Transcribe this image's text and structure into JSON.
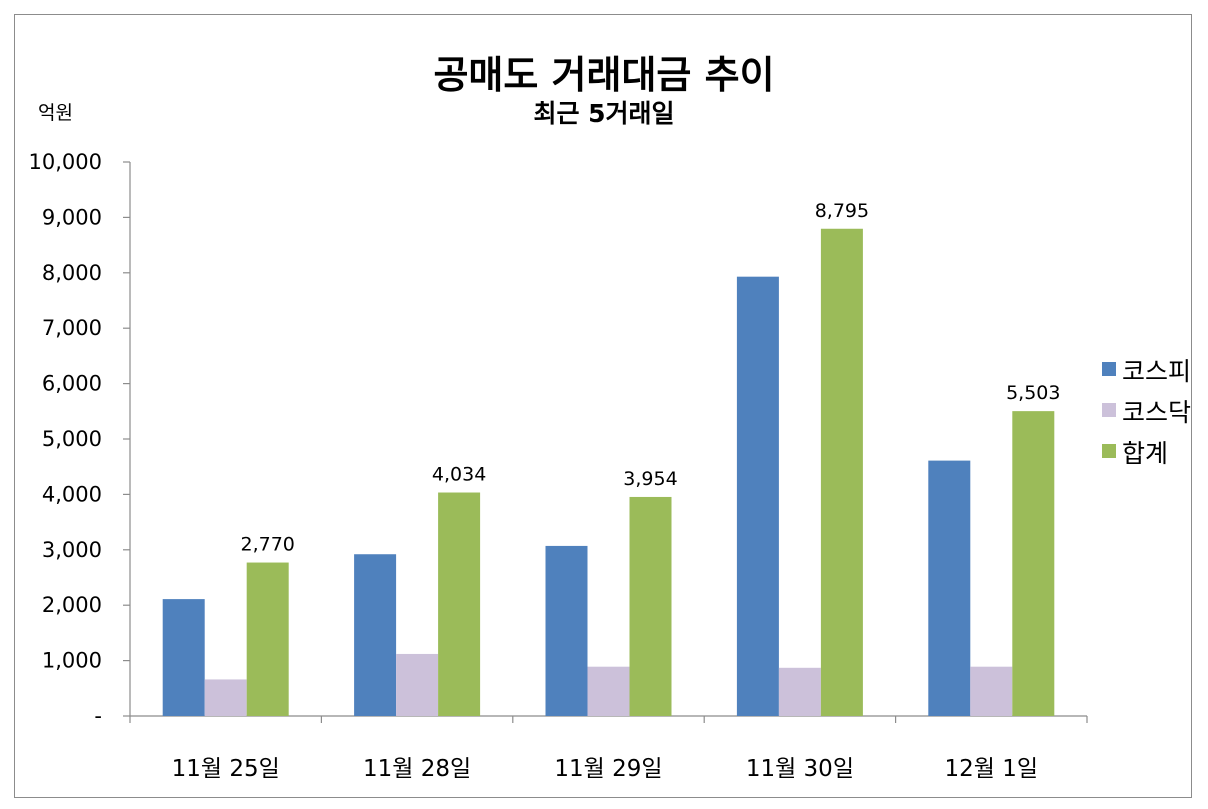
{
  "chart_data": {
    "type": "bar",
    "title": "공매도 거래대금 추이",
    "subtitle": "최근 5거래일",
    "ylabel": "억원",
    "categories": [
      "11월 25일",
      "11월 28일",
      "11월 29일",
      "11월 30일",
      "12월 1일"
    ],
    "series": [
      {
        "name": "코스피",
        "color": "#4f81bd",
        "values": [
          2110,
          2920,
          3070,
          7930,
          4610
        ]
      },
      {
        "name": "코스닥",
        "color": "#ccc1da",
        "values": [
          660,
          1120,
          890,
          870,
          890
        ]
      },
      {
        "name": "합계",
        "color": "#9bbb59",
        "values": [
          2770,
          4034,
          3954,
          8795,
          5503
        ],
        "labels": [
          "2,770",
          "4,034",
          "3,954",
          "8,795",
          "5,503"
        ]
      }
    ],
    "ylim": [
      0,
      10000
    ],
    "yticks": [
      0,
      1000,
      2000,
      3000,
      4000,
      5000,
      6000,
      7000,
      8000,
      9000,
      10000
    ],
    "ytick_labels": [
      "-",
      "1,000",
      "2,000",
      "3,000",
      "4,000",
      "5,000",
      "6,000",
      "7,000",
      "8,000",
      "9,000",
      "10,000"
    ],
    "grid": false,
    "legend_position": "right"
  }
}
